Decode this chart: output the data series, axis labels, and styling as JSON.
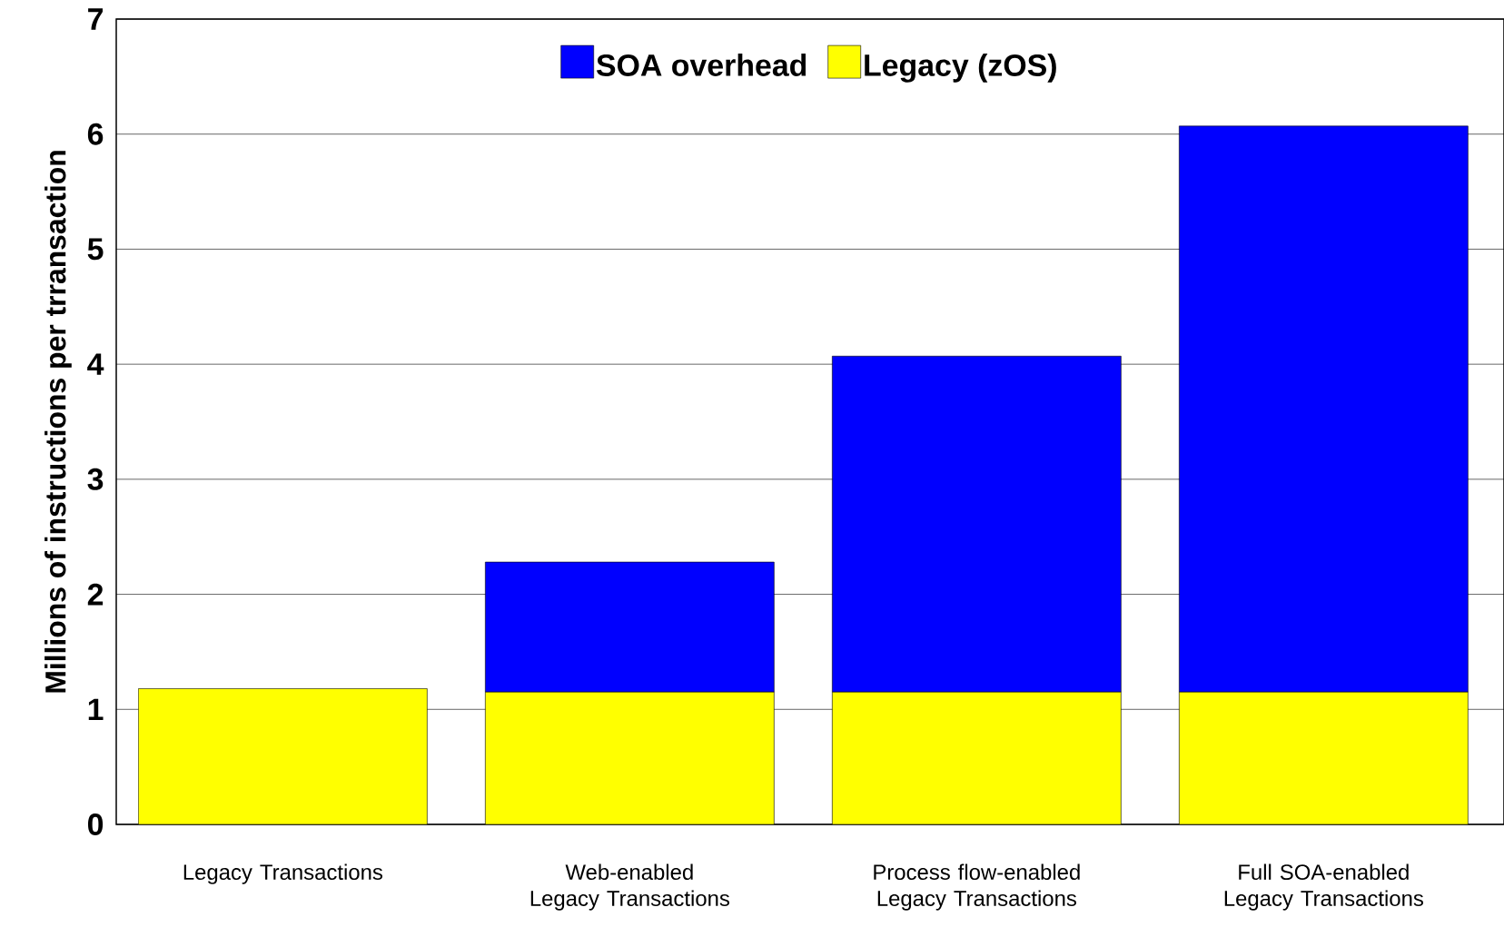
{
  "chart_data": {
    "type": "bar",
    "stacked": true,
    "ylabel": "Millions of instructions per trransaction",
    "categories": [
      "Legacy Transactions",
      "Web-enabled Legacy Transactions",
      "Process flow-enabled Legacy Transactions",
      "Full SOA-enabled Legacy Transactions"
    ],
    "series": [
      {
        "name": "Legacy (zOS)",
        "color": "#ffff00",
        "values": [
          1.18,
          1.15,
          1.15,
          1.15
        ]
      },
      {
        "name": "SOA overhead",
        "color": "#0000ff",
        "values": [
          0,
          1.13,
          2.92,
          4.92
        ]
      }
    ],
    "ylim": [
      0,
      7
    ],
    "yticks": [
      0,
      1,
      2,
      3,
      4,
      5,
      6,
      7
    ],
    "grid": "y",
    "legend": "top"
  }
}
